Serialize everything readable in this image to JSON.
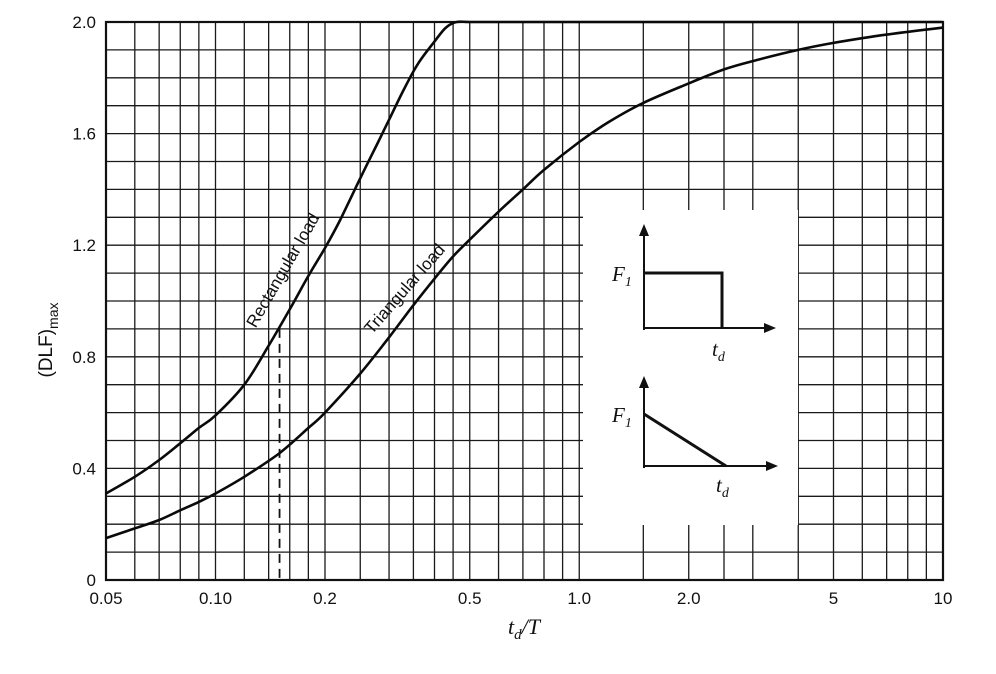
{
  "chart_data": {
    "type": "line",
    "x_scale": "log",
    "xlim": [
      0.05,
      10
    ],
    "ylim": [
      0,
      2.0
    ],
    "grid": true,
    "xlabel": "t_d/T",
    "xlabel_main": "t",
    "xlabel_sub": "d",
    "xlabel_rest": "/T",
    "ylabel": "(DLF)max",
    "ylabel_main": "(DLF)",
    "ylabel_sub": "max",
    "x_ticks": [
      {
        "value": 0.05,
        "label": "0.05"
      },
      {
        "value": 0.1,
        "label": "0.10"
      },
      {
        "value": 0.2,
        "label": "0.2"
      },
      {
        "value": 0.5,
        "label": "0.5"
      },
      {
        "value": 1.0,
        "label": "1.0"
      },
      {
        "value": 2.0,
        "label": "2.0"
      },
      {
        "value": 5,
        "label": "5"
      },
      {
        "value": 10,
        "label": "10"
      }
    ],
    "y_ticks": [
      {
        "value": 0,
        "label": "0"
      },
      {
        "value": 0.4,
        "label": "0.4"
      },
      {
        "value": 0.8,
        "label": "0.8"
      },
      {
        "value": 1.2,
        "label": "1.2"
      },
      {
        "value": 1.6,
        "label": "1.6"
      },
      {
        "value": 2.0,
        "label": "2.0"
      }
    ],
    "series": [
      {
        "name": "Rectangular load",
        "label_at": {
          "x": 0.158,
          "y": 1.1,
          "angle_deg": -60
        },
        "x": [
          0.05,
          0.06,
          0.07,
          0.08,
          0.09,
          0.1,
          0.12,
          0.14,
          0.16,
          0.18,
          0.2,
          0.22,
          0.25,
          0.28,
          0.3,
          0.33,
          0.36,
          0.4,
          0.43,
          0.46,
          0.5,
          0.6,
          1.0,
          2.0,
          5.0,
          10.0
        ],
        "y": [
          0.31,
          0.37,
          0.43,
          0.49,
          0.545,
          0.59,
          0.7,
          0.84,
          0.97,
          1.09,
          1.19,
          1.29,
          1.44,
          1.57,
          1.65,
          1.76,
          1.85,
          1.93,
          1.98,
          2.0,
          2.0,
          2.0,
          2.0,
          2.0,
          2.0,
          2.0
        ]
      },
      {
        "name": "Triangular load",
        "label_at": {
          "x": 0.34,
          "y": 1.03,
          "angle_deg": -49
        },
        "x": [
          0.05,
          0.06,
          0.07,
          0.08,
          0.09,
          0.1,
          0.12,
          0.15,
          0.18,
          0.2,
          0.25,
          0.3,
          0.35,
          0.4,
          0.45,
          0.5,
          0.6,
          0.7,
          0.8,
          1.0,
          1.2,
          1.5,
          2.0,
          2.5,
          3.0,
          4.0,
          5.0,
          7.0,
          10.0
        ],
        "y": [
          0.15,
          0.185,
          0.215,
          0.25,
          0.28,
          0.31,
          0.37,
          0.455,
          0.545,
          0.6,
          0.74,
          0.87,
          0.985,
          1.08,
          1.16,
          1.22,
          1.32,
          1.4,
          1.47,
          1.57,
          1.64,
          1.71,
          1.78,
          1.83,
          1.86,
          1.9,
          1.925,
          1.955,
          1.98
        ]
      }
    ],
    "inset_labels": {
      "force_main": "F",
      "force_sub": "1",
      "time_main": "t",
      "time_sub": "d"
    }
  }
}
